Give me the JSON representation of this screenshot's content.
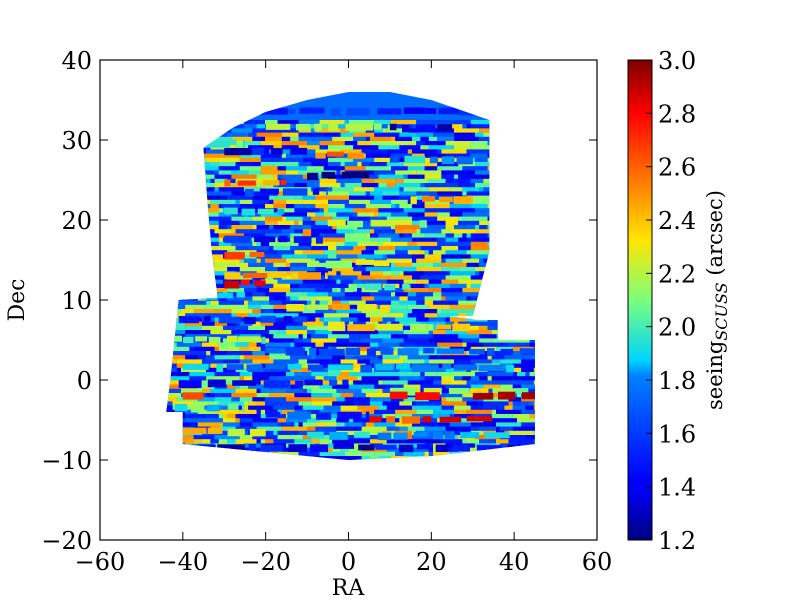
{
  "chart_data": {
    "type": "heatmap",
    "xlabel": "RA",
    "ylabel": "Dec",
    "xlim": [
      -60,
      60
    ],
    "ylim": [
      -20,
      40
    ],
    "xticks": [
      -60,
      -40,
      -20,
      0,
      20,
      40,
      60
    ],
    "yticks": [
      -20,
      -10,
      0,
      10,
      20,
      30,
      40
    ],
    "xtick_labels": [
      "−60",
      "−40",
      "−20",
      "0",
      "20",
      "40",
      "60"
    ],
    "ytick_labels": [
      "−20",
      "−10",
      "0",
      "10",
      "20",
      "30",
      "40"
    ],
    "colorbar": {
      "label_main": "seeing",
      "label_sub": "SCUSS",
      "label_unit": " (arcsec)",
      "range": [
        1.2,
        3.0
      ],
      "ticks": [
        1.2,
        1.4,
        1.6,
        1.8,
        2.0,
        2.2,
        2.4,
        2.6,
        2.8,
        3.0
      ],
      "tick_labels": [
        "1.2",
        "1.4",
        "1.6",
        "1.8",
        "2.0",
        "2.2",
        "2.4",
        "2.6",
        "2.8",
        "3.0"
      ],
      "colormap": "jet"
    },
    "footprint": {
      "north": [
        [
          -35,
          29
        ],
        [
          -28,
          31.5
        ],
        [
          -20,
          33.5
        ],
        [
          -10,
          35
        ],
        [
          0,
          36
        ],
        [
          10,
          36
        ],
        [
          20,
          35
        ],
        [
          34,
          32.5
        ],
        [
          34,
          16
        ],
        [
          32,
          12
        ],
        [
          30,
          8
        ],
        [
          -31,
          8
        ],
        [
          -32,
          12
        ],
        [
          -33,
          16
        ],
        [
          -34,
          22
        ],
        [
          -35,
          29
        ]
      ],
      "south": [
        [
          -41,
          10
        ],
        [
          -24,
          10.5
        ],
        [
          -10,
          11
        ],
        [
          10,
          9
        ],
        [
          31,
          7.5
        ],
        [
          36,
          7.5
        ],
        [
          36,
          5
        ],
        [
          45,
          5
        ],
        [
          45,
          -8
        ],
        [
          20,
          -9.5
        ],
        [
          0,
          -10
        ],
        [
          -20,
          -9
        ],
        [
          -40,
          -8
        ],
        [
          -40,
          -4
        ],
        [
          -44,
          -4
        ],
        [
          -43,
          0
        ],
        [
          -41,
          10
        ]
      ]
    },
    "stripe_values": [
      {
        "dec": 33.5,
        "ra": [
          -28,
          34
        ],
        "value": 1.5
      },
      {
        "dec": 31.5,
        "ra": [
          -20,
          10
        ],
        "value": 2.3
      },
      {
        "dec": 31.5,
        "ra": [
          10,
          25
        ],
        "value": 1.4
      },
      {
        "dec": 29.5,
        "ra": [
          -35,
          -25
        ],
        "value": 2.0
      },
      {
        "dec": 28.5,
        "ra": [
          -30,
          -10
        ],
        "value": 1.4
      },
      {
        "dec": 28.0,
        "ra": [
          -8,
          5
        ],
        "value": 2.6
      },
      {
        "dec": 27.5,
        "ra": [
          10,
          30
        ],
        "value": 1.8
      },
      {
        "dec": 25.5,
        "ra": [
          -10,
          5
        ],
        "value": 1.2
      },
      {
        "dec": 24.5,
        "ra": [
          -30,
          -15
        ],
        "value": 2.6
      },
      {
        "dec": 23.5,
        "ra": [
          -25,
          -5
        ],
        "value": 1.6
      },
      {
        "dec": 22.5,
        "ra": [
          15,
          30
        ],
        "value": 2.4
      },
      {
        "dec": 21.0,
        "ra": [
          -30,
          -15
        ],
        "value": 1.9
      },
      {
        "dec": 19.5,
        "ra": [
          -5,
          20
        ],
        "value": 2.2
      },
      {
        "dec": 17.5,
        "ra": [
          -30,
          -5
        ],
        "value": 1.5
      },
      {
        "dec": 15.5,
        "ra": [
          -30,
          -20
        ],
        "value": 2.6
      },
      {
        "dec": 14.5,
        "ra": [
          -10,
          10
        ],
        "value": 2.2
      },
      {
        "dec": 13.0,
        "ra": [
          -30,
          -5
        ],
        "value": 2.5
      },
      {
        "dec": 12.0,
        "ra": [
          -30,
          -20
        ],
        "value": 2.8
      },
      {
        "dec": 11.5,
        "ra": [
          0,
          15
        ],
        "value": 2.0
      },
      {
        "dec": 10.5,
        "ra": [
          -40,
          -25
        ],
        "value": 1.9
      },
      {
        "dec": 9.0,
        "ra": [
          -15,
          10
        ],
        "value": 2.3
      },
      {
        "dec": 7.5,
        "ra": [
          -41,
          -10
        ],
        "value": 1.5
      },
      {
        "dec": 6.5,
        "ra": [
          -5,
          30
        ],
        "value": 2.3
      },
      {
        "dec": 5.0,
        "ra": [
          -42,
          -20
        ],
        "value": 2.1
      },
      {
        "dec": 3.5,
        "ra": [
          -20,
          45
        ],
        "value": 1.7
      },
      {
        "dec": 1.5,
        "ra": [
          -40,
          40
        ],
        "value": 1.8
      },
      {
        "dec": -0.5,
        "ra": [
          -41,
          0
        ],
        "value": 1.5
      },
      {
        "dec": -1.5,
        "ra": [
          10,
          45
        ],
        "value": 2.2
      },
      {
        "dec": -2.0,
        "ra": [
          -40,
          -35
        ],
        "value": 2.6
      },
      {
        "dec": -2.0,
        "ra": [
          10,
          22
        ],
        "value": 2.9
      },
      {
        "dec": -2.0,
        "ra": [
          30,
          45
        ],
        "value": 2.9
      },
      {
        "dec": -3.5,
        "ra": [
          -42,
          -25
        ],
        "value": 2.0
      },
      {
        "dec": -4.5,
        "ra": [
          -20,
          5
        ],
        "value": 1.6
      },
      {
        "dec": -5.0,
        "ra": [
          5,
          20
        ],
        "value": 2.7
      },
      {
        "dec": -5.0,
        "ra": [
          22,
          35
        ],
        "value": 2.9
      },
      {
        "dec": -6.5,
        "ra": [
          -40,
          -20
        ],
        "value": 2.3
      },
      {
        "dec": -7.0,
        "ra": [
          -10,
          40
        ],
        "value": 1.9
      },
      {
        "dec": -8.5,
        "ra": [
          -38,
          40
        ],
        "value": 1.4
      }
    ]
  }
}
